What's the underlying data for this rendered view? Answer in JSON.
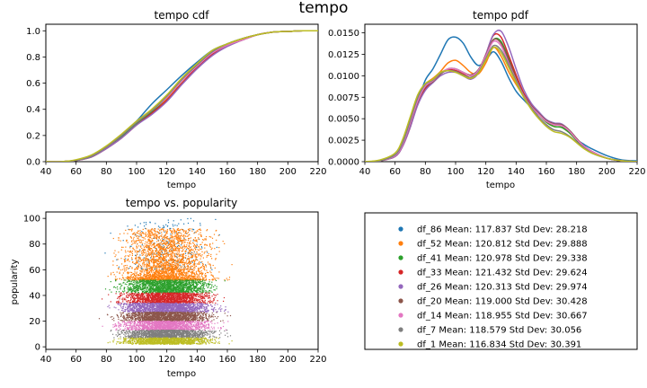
{
  "figure": {
    "suptitle": "tempo"
  },
  "colors": {
    "df_86": "#1f77b4",
    "df_52": "#ff7f0e",
    "df_41": "#2ca02c",
    "df_33": "#d62728",
    "df_26": "#9467bd",
    "df_20": "#8c564b",
    "df_14": "#e377c2",
    "df_7": "#7f7f7f",
    "df_1": "#bcbd22"
  },
  "chart_data": [
    {
      "type": "line",
      "title": "tempo cdf",
      "xlabel": "tempo",
      "ylabel": "",
      "xlim": [
        40,
        220
      ],
      "ylim": [
        0,
        1.05
      ],
      "xticks": [
        40,
        60,
        80,
        100,
        120,
        140,
        160,
        180,
        200,
        220
      ],
      "yticks": [
        0.0,
        0.2,
        0.4,
        0.6,
        0.8,
        1.0
      ],
      "x": [
        40,
        50,
        60,
        70,
        80,
        90,
        100,
        110,
        120,
        130,
        140,
        150,
        160,
        170,
        180,
        190,
        200,
        210,
        220
      ],
      "series": [
        {
          "key": "df_86",
          "values": [
            0,
            0,
            0.01,
            0.04,
            0.11,
            0.2,
            0.31,
            0.44,
            0.55,
            0.66,
            0.76,
            0.85,
            0.9,
            0.94,
            0.97,
            0.99,
            0.995,
            1,
            1
          ]
        },
        {
          "key": "df_52",
          "values": [
            0,
            0,
            0.01,
            0.04,
            0.1,
            0.19,
            0.29,
            0.38,
            0.48,
            0.6,
            0.72,
            0.82,
            0.89,
            0.94,
            0.97,
            0.99,
            0.995,
            1,
            1
          ]
        },
        {
          "key": "df_41",
          "values": [
            0,
            0,
            0.01,
            0.04,
            0.11,
            0.19,
            0.29,
            0.38,
            0.49,
            0.62,
            0.74,
            0.84,
            0.9,
            0.94,
            0.97,
            0.99,
            0.995,
            1,
            1
          ]
        },
        {
          "key": "df_33",
          "values": [
            0,
            0,
            0.01,
            0.035,
            0.1,
            0.18,
            0.28,
            0.37,
            0.47,
            0.6,
            0.72,
            0.82,
            0.89,
            0.93,
            0.97,
            0.99,
            0.995,
            1,
            1
          ]
        },
        {
          "key": "df_26",
          "values": [
            0,
            0,
            0.01,
            0.035,
            0.1,
            0.18,
            0.28,
            0.36,
            0.46,
            0.59,
            0.71,
            0.81,
            0.88,
            0.93,
            0.97,
            0.99,
            0.995,
            1,
            1
          ]
        },
        {
          "key": "df_20",
          "values": [
            0,
            0,
            0.01,
            0.04,
            0.11,
            0.2,
            0.3,
            0.39,
            0.49,
            0.62,
            0.73,
            0.83,
            0.89,
            0.93,
            0.97,
            0.99,
            0.995,
            1,
            1
          ]
        },
        {
          "key": "df_14",
          "values": [
            0,
            0,
            0.01,
            0.04,
            0.11,
            0.2,
            0.3,
            0.39,
            0.49,
            0.62,
            0.73,
            0.83,
            0.89,
            0.93,
            0.97,
            0.99,
            0.995,
            1,
            1
          ]
        },
        {
          "key": "df_7",
          "values": [
            0,
            0,
            0.01,
            0.04,
            0.11,
            0.2,
            0.3,
            0.39,
            0.5,
            0.63,
            0.74,
            0.84,
            0.9,
            0.94,
            0.97,
            0.99,
            0.995,
            1,
            1
          ]
        },
        {
          "key": "df_1",
          "values": [
            0,
            0,
            0.015,
            0.05,
            0.12,
            0.21,
            0.31,
            0.4,
            0.51,
            0.64,
            0.75,
            0.85,
            0.9,
            0.94,
            0.97,
            0.99,
            0.995,
            1,
            1
          ]
        }
      ]
    },
    {
      "type": "line",
      "title": "tempo pdf",
      "xlabel": "tempo",
      "ylabel": "",
      "xlim": [
        40,
        220
      ],
      "ylim": [
        0,
        0.016
      ],
      "xticks": [
        40,
        60,
        80,
        100,
        120,
        140,
        160,
        180,
        200,
        220
      ],
      "yticks": [
        "0.0000",
        "0.0025",
        "0.0050",
        "0.0075",
        "0.0100",
        "0.0125",
        "0.0150"
      ],
      "x": [
        40,
        50,
        60,
        65,
        70,
        75,
        80,
        85,
        90,
        95,
        100,
        105,
        110,
        115,
        120,
        125,
        130,
        135,
        140,
        145,
        150,
        155,
        160,
        165,
        170,
        175,
        180,
        185,
        190,
        200,
        210,
        220
      ],
      "series": [
        {
          "key": "df_86",
          "values": [
            0,
            0.0001,
            0.0008,
            0.002,
            0.0045,
            0.007,
            0.0095,
            0.0108,
            0.0125,
            0.0142,
            0.0145,
            0.0138,
            0.0122,
            0.0112,
            0.0118,
            0.0128,
            0.0117,
            0.0098,
            0.0082,
            0.0072,
            0.0063,
            0.0055,
            0.0048,
            0.0045,
            0.0042,
            0.0035,
            0.0026,
            0.002,
            0.0015,
            0.0007,
            0.0002,
            0.0001
          ]
        },
        {
          "key": "df_52",
          "values": [
            0,
            0.0001,
            0.0007,
            0.002,
            0.0045,
            0.0072,
            0.009,
            0.0097,
            0.0105,
            0.0115,
            0.0118,
            0.0112,
            0.0104,
            0.0102,
            0.0115,
            0.0133,
            0.0123,
            0.0105,
            0.009,
            0.0076,
            0.0064,
            0.0055,
            0.0046,
            0.0041,
            0.004,
            0.0034,
            0.0025,
            0.0017,
            0.0011,
            0.0004,
            0.0001,
            0.0
          ]
        },
        {
          "key": "df_41",
          "values": [
            0,
            0.0001,
            0.0007,
            0.002,
            0.0045,
            0.0072,
            0.009,
            0.0094,
            0.0102,
            0.0108,
            0.0108,
            0.0104,
            0.01,
            0.0105,
            0.0122,
            0.0142,
            0.014,
            0.012,
            0.0098,
            0.0078,
            0.0064,
            0.0055,
            0.0046,
            0.0041,
            0.004,
            0.0034,
            0.0025,
            0.0017,
            0.0011,
            0.0004,
            0.0001,
            0.0
          ]
        },
        {
          "key": "df_33",
          "values": [
            0,
            0.0001,
            0.0006,
            0.0018,
            0.004,
            0.0068,
            0.0085,
            0.0093,
            0.0102,
            0.0107,
            0.0106,
            0.0102,
            0.0098,
            0.0105,
            0.0125,
            0.0147,
            0.0145,
            0.0124,
            0.0101,
            0.008,
            0.0066,
            0.0056,
            0.0047,
            0.0043,
            0.0042,
            0.0036,
            0.0026,
            0.0018,
            0.0012,
            0.0004,
            0.0001,
            0.0
          ]
        },
        {
          "key": "df_26",
          "values": [
            0,
            0.0001,
            0.0006,
            0.0018,
            0.004,
            0.0066,
            0.0083,
            0.0092,
            0.01,
            0.0104,
            0.0104,
            0.01,
            0.0096,
            0.0103,
            0.0125,
            0.0148,
            0.0152,
            0.0134,
            0.0108,
            0.0084,
            0.0068,
            0.0058,
            0.0049,
            0.0045,
            0.0044,
            0.0037,
            0.0027,
            0.0018,
            0.0012,
            0.0004,
            0.0001,
            0.0
          ]
        },
        {
          "key": "df_20",
          "values": [
            0,
            0.0001,
            0.0007,
            0.002,
            0.0044,
            0.007,
            0.0087,
            0.0093,
            0.0102,
            0.0108,
            0.0108,
            0.0104,
            0.0101,
            0.0107,
            0.0124,
            0.0142,
            0.0138,
            0.0118,
            0.0097,
            0.0078,
            0.0065,
            0.0056,
            0.0048,
            0.0044,
            0.0043,
            0.0037,
            0.0027,
            0.0018,
            0.0012,
            0.0004,
            0.0001,
            0.0
          ]
        },
        {
          "key": "df_14",
          "values": [
            0,
            0.0001,
            0.0007,
            0.002,
            0.0045,
            0.0071,
            0.0088,
            0.0094,
            0.0103,
            0.0108,
            0.0108,
            0.0104,
            0.01,
            0.0106,
            0.0123,
            0.014,
            0.0135,
            0.0115,
            0.0095,
            0.0077,
            0.0064,
            0.0055,
            0.0047,
            0.0043,
            0.0042,
            0.0036,
            0.0026,
            0.0018,
            0.0012,
            0.0004,
            0.0001,
            0.0
          ]
        },
        {
          "key": "df_7",
          "values": [
            0,
            0.0001,
            0.0008,
            0.0022,
            0.0048,
            0.0075,
            0.009,
            0.0095,
            0.0103,
            0.0106,
            0.0105,
            0.0101,
            0.0098,
            0.0104,
            0.012,
            0.0135,
            0.013,
            0.0113,
            0.0094,
            0.0076,
            0.0063,
            0.0052,
            0.0043,
            0.0037,
            0.0035,
            0.003,
            0.0023,
            0.0016,
            0.001,
            0.0004,
            0.0001,
            0.0
          ]
        },
        {
          "key": "df_1",
          "values": [
            0,
            0.0002,
            0.001,
            0.0026,
            0.0052,
            0.0078,
            0.0091,
            0.0096,
            0.0104,
            0.0106,
            0.0104,
            0.01,
            0.0097,
            0.0103,
            0.0118,
            0.0133,
            0.0127,
            0.011,
            0.0092,
            0.0075,
            0.0061,
            0.005,
            0.0041,
            0.0035,
            0.0033,
            0.0029,
            0.0022,
            0.0015,
            0.001,
            0.0004,
            0.0001,
            0.0
          ]
        }
      ]
    },
    {
      "type": "scatter",
      "title": "tempo vs. popularity",
      "xlabel": "tempo",
      "ylabel": "popularity",
      "xlim": [
        40,
        220
      ],
      "ylim": [
        -2,
        105
      ],
      "xticks": [
        40,
        60,
        80,
        100,
        120,
        140,
        160,
        180,
        200,
        220
      ],
      "yticks": [
        0,
        20,
        40,
        60,
        80,
        100
      ],
      "series": [
        {
          "key": "df_86",
          "popularity_range": [
            60,
            100
          ],
          "tempo_range": [
            48,
            205
          ]
        },
        {
          "key": "df_52",
          "popularity_range": [
            52,
            92
          ],
          "tempo_range": [
            45,
            210
          ]
        },
        {
          "key": "df_41",
          "popularity_range": [
            42,
            52
          ],
          "tempo_range": [
            44,
            212
          ]
        },
        {
          "key": "df_33",
          "popularity_range": [
            34,
            42
          ],
          "tempo_range": [
            44,
            212
          ]
        },
        {
          "key": "df_26",
          "popularity_range": [
            27,
            34
          ],
          "tempo_range": [
            44,
            212
          ]
        },
        {
          "key": "df_20",
          "popularity_range": [
            20,
            27
          ],
          "tempo_range": [
            44,
            212
          ]
        },
        {
          "key": "df_14",
          "popularity_range": [
            13,
            20
          ],
          "tempo_range": [
            44,
            212
          ]
        },
        {
          "key": "df_7",
          "popularity_range": [
            7,
            13
          ],
          "tempo_range": [
            44,
            212
          ]
        },
        {
          "key": "df_1",
          "popularity_range": [
            2,
            7
          ],
          "tempo_range": [
            44,
            212
          ]
        }
      ]
    }
  ],
  "legend": {
    "placement": "center of bottom-right panel",
    "entries": [
      {
        "key": "df_86",
        "label": "df_86  Mean: 117.837  Std Dev: 28.218"
      },
      {
        "key": "df_52",
        "label": "df_52  Mean: 120.812  Std Dev: 29.888"
      },
      {
        "key": "df_41",
        "label": "df_41  Mean: 120.978  Std Dev: 29.338"
      },
      {
        "key": "df_33",
        "label": "df_33  Mean: 121.432  Std Dev: 29.624"
      },
      {
        "key": "df_26",
        "label": "df_26  Mean: 120.313  Std Dev: 29.974"
      },
      {
        "key": "df_20",
        "label": "df_20  Mean: 119.000  Std Dev: 30.428"
      },
      {
        "key": "df_14",
        "label": "df_14  Mean: 118.955  Std Dev: 30.667"
      },
      {
        "key": "df_7",
        "label": "df_7  Mean: 118.579  Std Dev: 30.056"
      },
      {
        "key": "df_1",
        "label": "df_1  Mean: 116.834  Std Dev: 30.391"
      }
    ]
  }
}
